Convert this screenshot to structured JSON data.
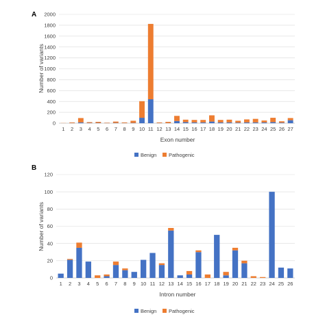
{
  "colors": {
    "benign": "#4472C4",
    "pathogenic": "#ED7D31",
    "grid": "#d9d9d9",
    "axis": "#bfbfbf"
  },
  "chart_data": [
    {
      "type": "bar",
      "stacked": true,
      "panel_label": "A",
      "title": "",
      "xlabel": "Exon number",
      "ylabel": "Number of variants",
      "ylim": [
        0,
        2000
      ],
      "yticks": [
        0,
        200,
        400,
        600,
        800,
        1000,
        1200,
        1400,
        1600,
        1800,
        2000
      ],
      "grid": true,
      "legend_position": "bottom",
      "categories": [
        "1",
        "2",
        "3",
        "4",
        "5",
        "6",
        "7",
        "8",
        "9",
        "10",
        "11",
        "12",
        "13",
        "14",
        "15",
        "16",
        "17",
        "18",
        "19",
        "20",
        "21",
        "22",
        "23",
        "24",
        "25",
        "26",
        "27"
      ],
      "series": [
        {
          "name": "Benign",
          "values": [
            0,
            3,
            15,
            5,
            5,
            3,
            5,
            3,
            5,
            100,
            440,
            3,
            3,
            40,
            20,
            15,
            15,
            30,
            15,
            15,
            10,
            15,
            15,
            15,
            20,
            10,
            55
          ]
        },
        {
          "name": "Pathogenic",
          "values": [
            3,
            12,
            80,
            15,
            20,
            7,
            25,
            12,
            40,
            305,
            1385,
            12,
            22,
            95,
            45,
            45,
            45,
            115,
            45,
            50,
            35,
            55,
            65,
            35,
            80,
            25,
            40
          ]
        }
      ]
    },
    {
      "type": "bar",
      "stacked": true,
      "panel_label": "B",
      "title": "",
      "xlabel": "Intron number",
      "ylabel": "Number of variants",
      "ylim": [
        0,
        120
      ],
      "yticks": [
        0,
        20,
        40,
        60,
        80,
        100,
        120
      ],
      "grid": true,
      "legend_position": "bottom",
      "categories": [
        "1",
        "2",
        "3",
        "4",
        "5",
        "6",
        "7",
        "8",
        "9",
        "10",
        "11",
        "12",
        "13",
        "14",
        "15",
        "16",
        "17",
        "18",
        "19",
        "20",
        "21",
        "22",
        "23",
        "24",
        "25",
        "26"
      ],
      "series": [
        {
          "name": "Benign",
          "values": [
            5,
            21,
            35,
            19,
            0,
            2,
            15,
            9,
            7,
            21,
            29,
            15,
            55,
            3,
            4,
            30,
            0,
            50,
            3,
            32,
            17,
            0,
            0,
            100,
            12,
            11
          ]
        },
        {
          "name": "Pathogenic",
          "values": [
            0,
            1,
            6,
            0,
            3,
            2,
            4,
            2,
            0,
            0,
            0,
            2,
            3,
            0,
            4,
            2,
            4,
            0,
            4,
            3,
            3,
            2,
            1,
            0,
            0,
            0
          ]
        }
      ]
    }
  ]
}
